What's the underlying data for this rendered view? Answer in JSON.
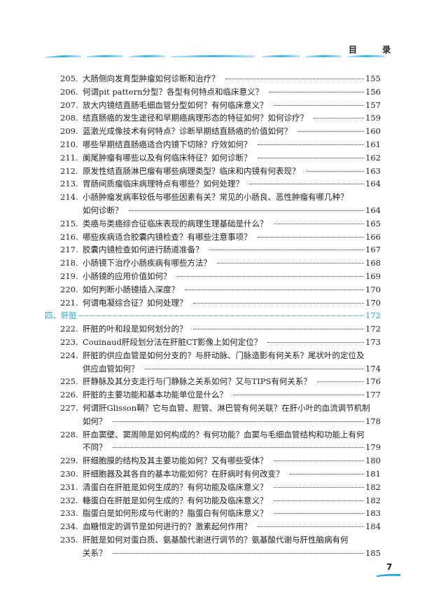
{
  "header": {
    "title": "目 录"
  },
  "accent_color": "#2aa8dc",
  "entries": [
    {
      "num": "205.",
      "lines": [
        "大肠侧向发育型肿瘤如何诊断和治疗？"
      ],
      "page": "155"
    },
    {
      "num": "206.",
      "lines": [
        "何谓pit pattern分型？各型有何特点和临床意义？"
      ],
      "page": "156"
    },
    {
      "num": "207.",
      "lines": [
        "放大内镜结直肠毛细血管分型如何？有何临床意义？"
      ],
      "page": "157"
    },
    {
      "num": "208.",
      "lines": [
        "结直肠癌的发生途径和早期癌病理形态的特征如何？如何诊疗？"
      ],
      "page": "159"
    },
    {
      "num": "209.",
      "lines": [
        "蓝激光成像技术有何特点？诊断早期结直肠癌的价值如何？"
      ],
      "page": "160"
    },
    {
      "num": "210.",
      "lines": [
        "哪些早期结直肠癌适合内镜下切除？疗效如何？"
      ],
      "page": "161"
    },
    {
      "num": "211.",
      "lines": [
        "阑尾肿瘤有哪些以及有何临床特征？如何诊断？"
      ],
      "page": "162"
    },
    {
      "num": "212.",
      "lines": [
        "原发性结直肠淋巴瘤有哪些病理类型？临床和内镜有何表现？"
      ],
      "page": "163"
    },
    {
      "num": "213.",
      "lines": [
        "胃肠间质瘤临床病理特点有哪些？如何处理？"
      ],
      "page": "164"
    },
    {
      "num": "214.",
      "lines": [
        "小肠肿瘤发病率较低与哪些因素有关？常见的小肠良、恶性肿瘤有哪几种？",
        "如何诊断？"
      ],
      "page": "164"
    },
    {
      "num": "215.",
      "lines": [
        "类癌与类癌综合征临床表现的病理生理基础是什么？"
      ],
      "page": "165"
    },
    {
      "num": "216.",
      "lines": [
        "哪些疾病适合胶囊内镜检查？有哪些注意事项？"
      ],
      "page": "166"
    },
    {
      "num": "217.",
      "lines": [
        "胶囊内镜检查如何进行肠道准备？"
      ],
      "page": "167"
    },
    {
      "num": "218.",
      "lines": [
        "小肠镜下治疗小肠疾病有哪些方法？"
      ],
      "page": "168"
    },
    {
      "num": "219.",
      "lines": [
        "小肠镜的应用价值如何？"
      ],
      "page": "169"
    },
    {
      "num": "220.",
      "lines": [
        "如何判断小肠镜插入深度？"
      ],
      "page": "170"
    },
    {
      "num": "221.",
      "lines": [
        "何谓电凝综合征？如何处理？"
      ],
      "page": "170"
    },
    {
      "section": true,
      "lines": [
        "四、肝脏"
      ],
      "page": "172"
    },
    {
      "num": "222.",
      "lines": [
        "肝脏的叶和段是如何划分的？"
      ],
      "page": "172"
    },
    {
      "num": "223.",
      "lines": [
        "Couinaud肝段划分法在肝脏CT影像上如何定位？"
      ],
      "page": "173"
    },
    {
      "num": "224.",
      "lines": [
        "肝脏的供应血管是如何分支的？与肝动脉、门脉造影有何关系？尾状叶的定位及",
        "供应血管如何？"
      ],
      "page": "174"
    },
    {
      "num": "225.",
      "lines": [
        "肝静脉及其分支走行与门静脉之关系如何？又与TIPS有何关系？"
      ],
      "page": "176"
    },
    {
      "num": "226.",
      "lines": [
        "肝脏的主要功能和基本功能单位是什么？"
      ],
      "page": "177"
    },
    {
      "num": "227.",
      "lines": [
        "何谓肝Glisson鞘？它与血管、胆管、淋巴管有何关联？在肝小叶的血流调节机制",
        "如何？"
      ],
      "page": "178"
    },
    {
      "num": "228.",
      "lines": [
        "肝血窦壁、窦周隙是如何构成的？有何功能？血窦与毛细血管结构和功能上有何",
        "不同？"
      ],
      "page": "179"
    },
    {
      "num": "229.",
      "lines": [
        "肝细胞膜的结构及其主要功能如何？又有哪些受体？"
      ],
      "page": "180"
    },
    {
      "num": "230.",
      "lines": [
        "肝细胞器及其各自的基本功能如何？在肝病时有何改变？"
      ],
      "page": "181"
    },
    {
      "num": "231.",
      "lines": [
        "清蛋白在肝脏是如何生成的？有何功能及临床意义？"
      ],
      "page": "182"
    },
    {
      "num": "232.",
      "lines": [
        "糖蛋白在肝脏是如何生成的？有何功能及临床意义？"
      ],
      "page": "182"
    },
    {
      "num": "233.",
      "lines": [
        "脂蛋白是如何形成与代谢的？脂蛋白有何临床意义？"
      ],
      "page": "183"
    },
    {
      "num": "234.",
      "lines": [
        "血糖恒定的调节是如何进行的？激素起何作用？"
      ],
      "page": "184"
    },
    {
      "num": "235.",
      "lines": [
        "肝脏是如何对蛋白质、氨基酸代谢进行调节的？氨基酸代谢与肝性脑病有何",
        "关系？"
      ],
      "page": "185"
    }
  ],
  "footer": {
    "page_number": "7"
  }
}
